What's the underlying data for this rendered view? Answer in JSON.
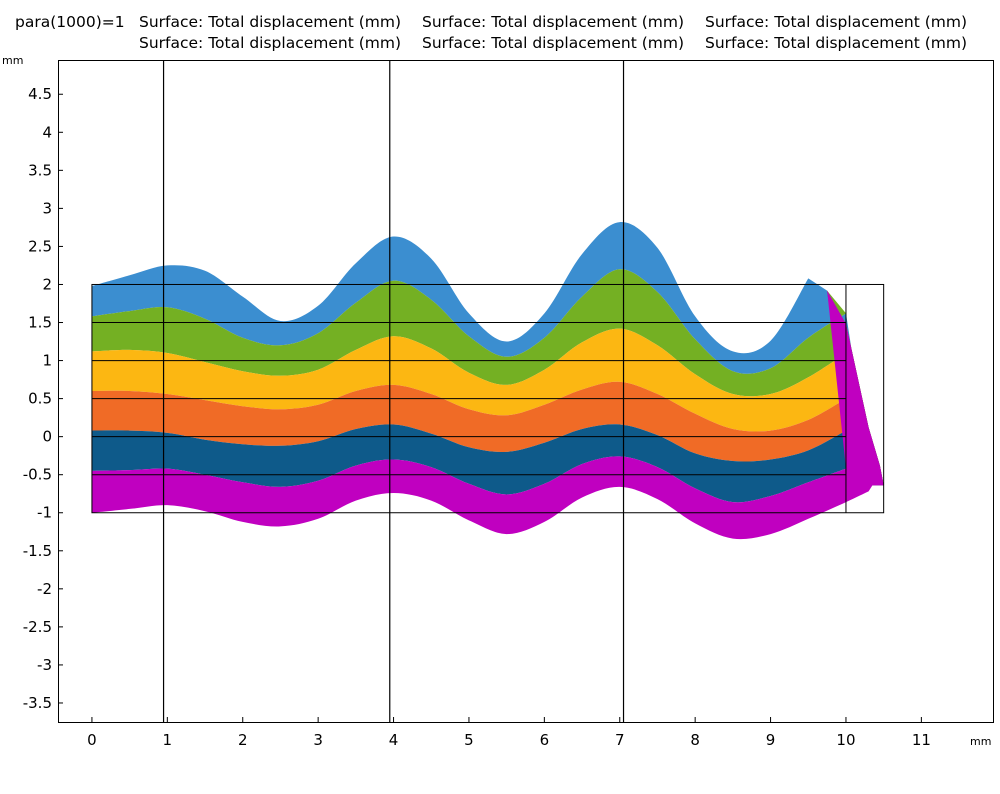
{
  "chart_data": {
    "type": "area",
    "title_lines": [
      [
        "para(1000)=1",
        "Surface: Total displacement (mm)",
        "Surface: Total displacement (mm)",
        "Surface: Total displacement (mm)"
      ],
      [
        "",
        "Surface: Total displacement (mm)",
        "Surface: Total displacement (mm)",
        "Surface: Total displacement (mm)"
      ]
    ],
    "xlabel": "mm",
    "ylabel": "mm",
    "xlim": [
      -0.45,
      11.95
    ],
    "ylim": [
      -3.75,
      4.95
    ],
    "x_ticks": [
      "0",
      "1",
      "2",
      "3",
      "4",
      "5",
      "6",
      "7",
      "8",
      "9",
      "10",
      "11"
    ],
    "y_ticks": [
      "4.5",
      "4",
      "3.5",
      "3",
      "2.5",
      "2",
      "1.5",
      "1",
      "0.5",
      "0",
      "-0.5",
      "-1",
      "-1.5",
      "-2",
      "-2.5",
      "-3",
      "-3.5"
    ],
    "grid": false,
    "vertical_lines_x": [
      0.95,
      3.95,
      7.05
    ],
    "undeformed_outline": {
      "outer_rect": {
        "x": [
          0,
          10.5
        ],
        "y": [
          -1,
          2
        ]
      },
      "inner_divider_x": 10,
      "horizontal_lines_y": [
        1.5,
        1,
        0.5,
        0,
        -0.5
      ]
    },
    "layer_colors": [
      "#3b8ed0",
      "#74b023",
      "#fcb712",
      "#f06b26",
      "#0e5a8a",
      "#c000c0"
    ],
    "boundaries": [
      {
        "name": "top",
        "x": [
          0,
          0.5,
          1,
          1.5,
          2,
          2.5,
          3,
          3.5,
          4,
          4.5,
          5,
          5.5,
          6,
          6.5,
          7,
          7.5,
          8,
          8.5,
          9,
          9.5
        ],
        "y": [
          1.98,
          2.12,
          2.25,
          2.18,
          1.84,
          1.52,
          1.72,
          2.28,
          2.63,
          2.34,
          1.62,
          1.25,
          1.62,
          2.4,
          2.82,
          2.48,
          1.58,
          1.12,
          1.26,
          2.08
        ]
      },
      {
        "name": "boundary-1",
        "x": [
          0,
          0.5,
          1,
          1.5,
          2,
          2.5,
          3,
          3.5,
          4,
          4.5,
          5,
          5.5,
          6,
          6.5,
          7,
          7.5,
          8,
          8.5,
          9,
          9.5,
          10
        ],
        "y": [
          1.58,
          1.65,
          1.7,
          1.55,
          1.3,
          1.2,
          1.36,
          1.76,
          2.05,
          1.8,
          1.32,
          1.05,
          1.3,
          1.84,
          2.2,
          1.9,
          1.28,
          0.86,
          0.9,
          1.3,
          1.62
        ]
      },
      {
        "name": "boundary-2",
        "x": [
          0,
          0.5,
          1,
          1.5,
          2,
          2.5,
          3,
          3.5,
          4,
          4.5,
          5,
          5.5,
          6,
          6.5,
          7,
          7.5,
          8,
          8.5,
          9,
          9.5,
          10
        ],
        "y": [
          1.12,
          1.14,
          1.1,
          0.98,
          0.86,
          0.8,
          0.88,
          1.14,
          1.32,
          1.16,
          0.84,
          0.68,
          0.88,
          1.24,
          1.42,
          1.2,
          0.82,
          0.56,
          0.56,
          0.78,
          1.1
        ]
      },
      {
        "name": "boundary-3",
        "x": [
          0,
          0.5,
          1,
          1.5,
          2,
          2.5,
          3,
          3.5,
          4,
          4.5,
          5,
          5.5,
          6,
          6.5,
          7,
          7.5,
          8,
          8.5,
          9,
          9.5,
          10
        ],
        "y": [
          0.6,
          0.6,
          0.56,
          0.48,
          0.4,
          0.36,
          0.42,
          0.6,
          0.68,
          0.56,
          0.36,
          0.28,
          0.42,
          0.62,
          0.72,
          0.56,
          0.3,
          0.1,
          0.08,
          0.22,
          0.5
        ]
      },
      {
        "name": "boundary-4",
        "x": [
          0,
          0.5,
          1,
          1.5,
          2,
          2.5,
          3,
          3.5,
          4,
          4.5,
          5,
          5.5,
          6,
          6.5,
          7,
          7.5,
          8,
          8.5,
          9,
          9.5,
          10
        ],
        "y": [
          0.08,
          0.08,
          0.05,
          -0.04,
          -0.1,
          -0.12,
          -0.06,
          0.1,
          0.16,
          0.04,
          -0.14,
          -0.2,
          -0.08,
          0.1,
          0.16,
          0.02,
          -0.22,
          -0.32,
          -0.3,
          -0.18,
          0.08
        ]
      },
      {
        "name": "boundary-5",
        "x": [
          0,
          0.5,
          1,
          1.5,
          2,
          2.5,
          3,
          3.5,
          4,
          4.5,
          5,
          5.5,
          6,
          6.5,
          7,
          7.5,
          8,
          8.5,
          9,
          9.5,
          10
        ],
        "y": [
          -0.45,
          -0.44,
          -0.42,
          -0.5,
          -0.6,
          -0.66,
          -0.58,
          -0.38,
          -0.3,
          -0.4,
          -0.62,
          -0.76,
          -0.62,
          -0.36,
          -0.26,
          -0.4,
          -0.68,
          -0.86,
          -0.78,
          -0.6,
          -0.42
        ]
      },
      {
        "name": "bottom",
        "x": [
          0,
          0.5,
          1,
          1.5,
          2,
          2.5,
          3,
          3.5,
          4,
          4.5,
          5,
          5.5,
          6,
          6.5,
          7,
          7.5,
          8,
          8.5,
          9,
          9.5,
          10,
          10.3
        ],
        "y": [
          -1,
          -0.95,
          -0.9,
          -0.98,
          -1.12,
          -1.18,
          -1.08,
          -0.84,
          -0.74,
          -0.84,
          -1.1,
          -1.28,
          -1.12,
          -0.8,
          -0.66,
          -0.82,
          -1.14,
          -1.34,
          -1.28,
          -1.08,
          -0.86,
          -0.72
        ]
      }
    ],
    "right_edge": {
      "x": [
        9.5,
        9.75,
        10,
        10.15,
        10.3,
        10.45,
        10.5,
        10.35
      ],
      "y": [
        2.08,
        1.92,
        1.48,
        0.8,
        0.12,
        -0.38,
        -0.64,
        -0.64
      ]
    }
  }
}
